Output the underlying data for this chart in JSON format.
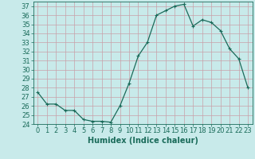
{
  "x": [
    0,
    1,
    2,
    3,
    4,
    5,
    6,
    7,
    8,
    9,
    10,
    11,
    12,
    13,
    14,
    15,
    16,
    17,
    18,
    19,
    20,
    21,
    22,
    23
  ],
  "y": [
    27.5,
    26.2,
    26.2,
    25.5,
    25.5,
    24.5,
    24.3,
    24.3,
    24.2,
    26.0,
    28.5,
    31.5,
    33.0,
    36.0,
    36.5,
    37.0,
    37.2,
    34.8,
    35.5,
    35.2,
    34.3,
    32.3,
    31.2,
    28.0
  ],
  "line_color": "#1a6b5a",
  "marker": "+",
  "marker_size": 3,
  "marker_lw": 0.8,
  "line_width": 0.9,
  "bg_color": "#c8eaea",
  "grid_color": "#c8a0a8",
  "xlabel": "Humidex (Indice chaleur)",
  "ylim": [
    24,
    37.5
  ],
  "xlim": [
    -0.5,
    23.5
  ],
  "yticks": [
    24,
    25,
    26,
    27,
    28,
    29,
    30,
    31,
    32,
    33,
    34,
    35,
    36,
    37
  ],
  "xticks": [
    0,
    1,
    2,
    3,
    4,
    5,
    6,
    7,
    8,
    9,
    10,
    11,
    12,
    13,
    14,
    15,
    16,
    17,
    18,
    19,
    20,
    21,
    22,
    23
  ],
  "xtick_labels": [
    "0",
    "1",
    "2",
    "3",
    "4",
    "5",
    "6",
    "7",
    "8",
    "9",
    "10",
    "11",
    "12",
    "13",
    "14",
    "15",
    "16",
    "17",
    "18",
    "19",
    "20",
    "21",
    "22",
    "23"
  ],
  "tick_color": "#1a6b5a",
  "label_fontsize": 7,
  "tick_fontsize": 6
}
